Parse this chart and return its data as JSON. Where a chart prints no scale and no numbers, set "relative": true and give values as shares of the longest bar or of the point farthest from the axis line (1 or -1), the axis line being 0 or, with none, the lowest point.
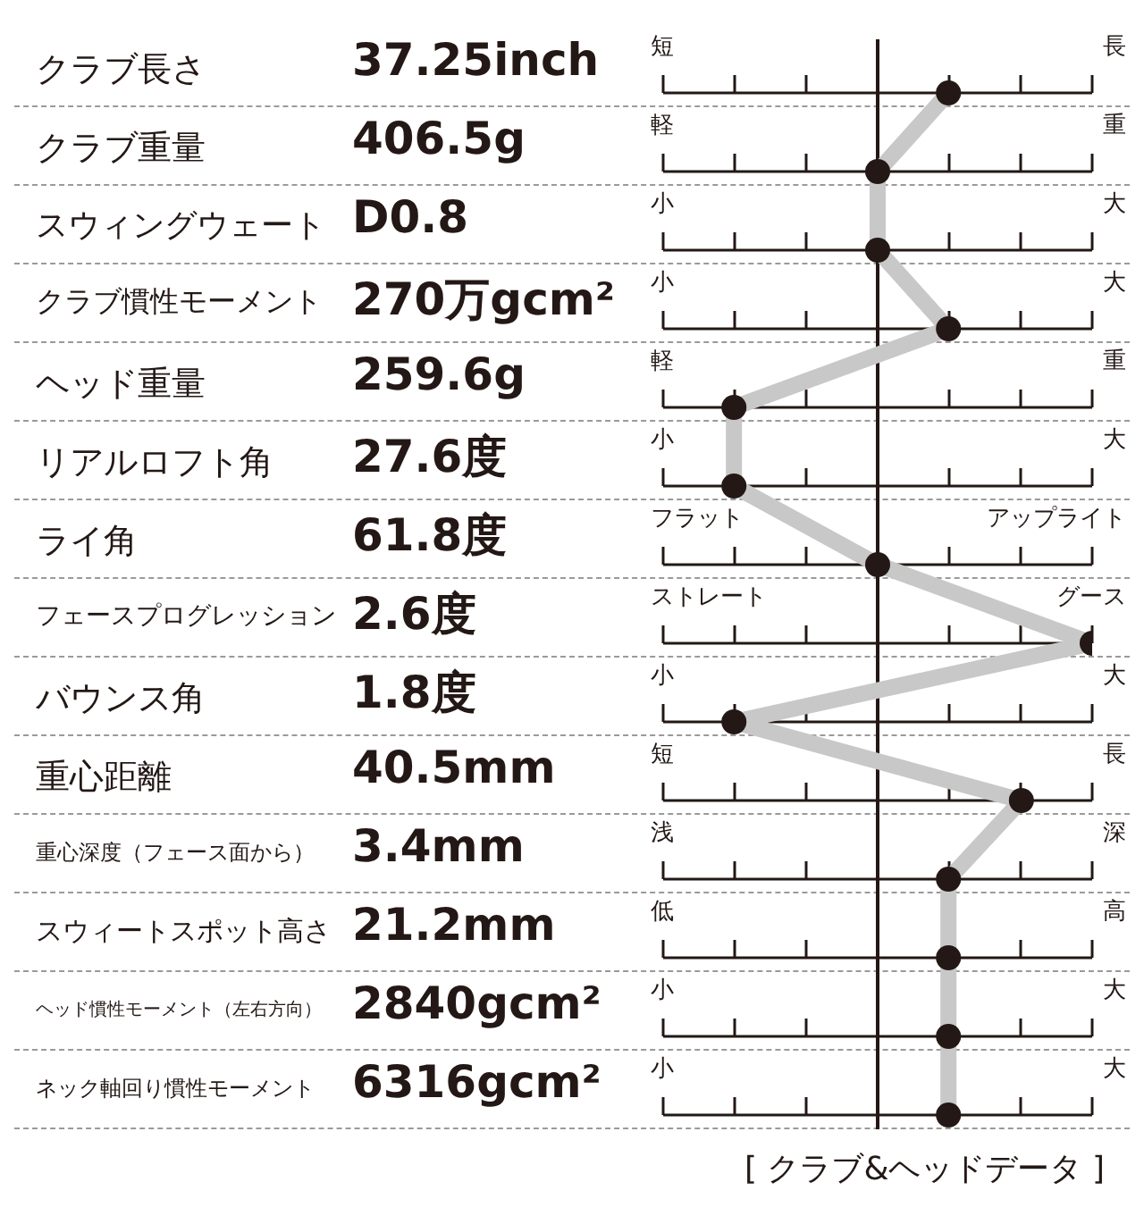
{
  "chart_data": {
    "type": "line",
    "orientation": "horizontal",
    "relative": true,
    "title": "[ クラブ&ヘッドデータ ]",
    "categories": [
      "クラブ長さ",
      "クラブ重量",
      "スウィングウェート",
      "クラブ慣性モーメント",
      "ヘッド重量",
      "リアルロフト角",
      "ライ角",
      "フェースプログレッション",
      "バウンス角",
      "重心距離",
      "重心深度（フェース面から）",
      "スウィートスポット高さ",
      "ヘッド慣性モーメント（左右方向）",
      "ネック軸回り慣性モーメント"
    ],
    "series": [
      {
        "color": "#c8c8c8",
        "values": [
          0.33,
          0,
          0,
          0.33,
          -0.67,
          -0.67,
          0,
          1,
          -0.67,
          0.67,
          0.33,
          0.33,
          0.33,
          0.33
        ]
      }
    ],
    "marker": "circle",
    "grid": "y",
    "annotations": [
      "37.25inch",
      "406.5g",
      "D0.8",
      "270万gcm²",
      "259.6g",
      "27.6度",
      "61.8度",
      "2.6度",
      "1.8度",
      "40.5mm",
      "3.4mm",
      "21.2mm",
      "2840gcm²",
      "6316gcm²",
      "短",
      "長",
      "軽",
      "重",
      "小",
      "大",
      "小",
      "大",
      "軽",
      "重",
      "小",
      "大",
      "フラット",
      "アップライト",
      "ストレート",
      "グース",
      "小",
      "大",
      "短",
      "長",
      "浅",
      "深",
      "低",
      "高",
      "小",
      "大",
      "小",
      "大"
    ]
  }
}
